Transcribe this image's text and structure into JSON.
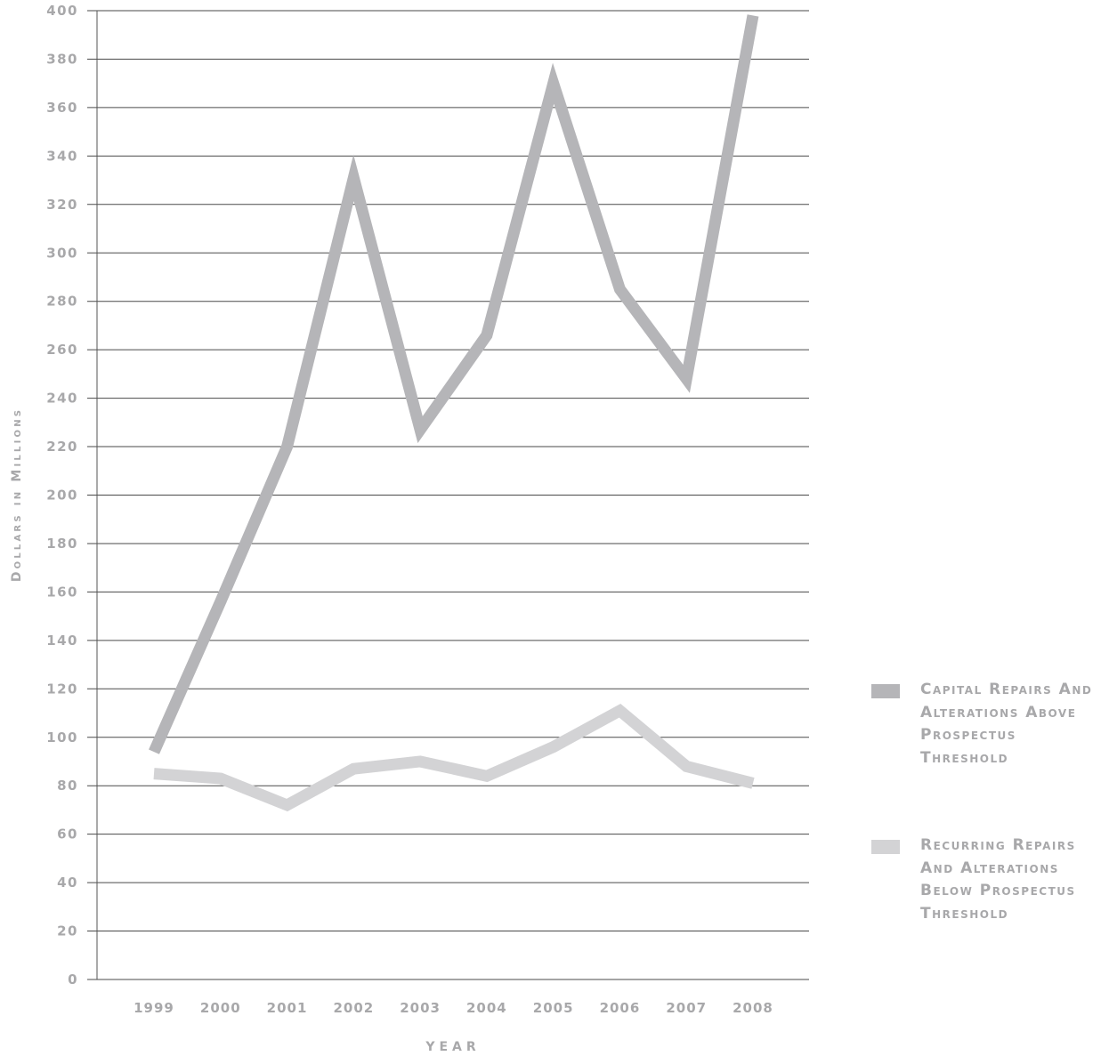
{
  "chart_data": {
    "type": "line",
    "title": "",
    "xlabel": "YEAR",
    "ylabel": "Dollars in Millions",
    "categories": [
      "1999",
      "2000",
      "2001",
      "2002",
      "2003",
      "2004",
      "2005",
      "2006",
      "2007",
      "2008"
    ],
    "ylim": [
      0,
      400
    ],
    "yticks": [
      0,
      20,
      40,
      60,
      80,
      100,
      120,
      140,
      160,
      180,
      200,
      220,
      240,
      260,
      280,
      300,
      320,
      340,
      360,
      380,
      400
    ],
    "grid": true,
    "legend_position": "right",
    "series": [
      {
        "name": "Capital Repairs And Alterations Above Prospectus Threshold",
        "color": "#b5b5b8",
        "values": [
          94,
          156,
          220,
          331,
          227,
          266,
          370,
          285,
          248,
          398
        ]
      },
      {
        "name": "Recurring Repairs And Alterations Below Prospectus Threshold",
        "color": "#d3d3d5",
        "values": [
          85,
          83,
          72,
          87,
          90,
          84,
          96,
          111,
          88,
          81
        ]
      }
    ]
  }
}
